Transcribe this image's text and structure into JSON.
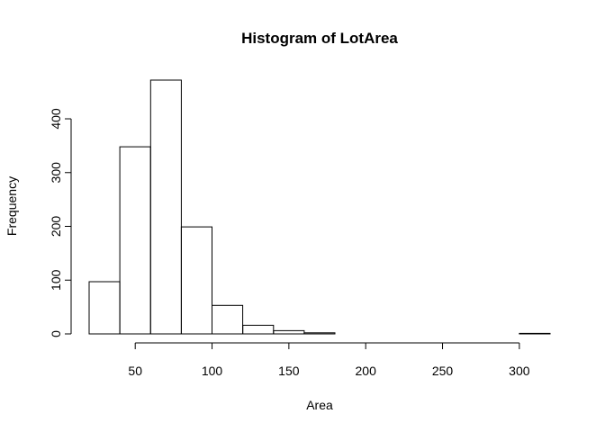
{
  "chart_data": {
    "type": "bar",
    "title": "Histogram of LotArea",
    "xlabel": "Area",
    "ylabel": "Frequency",
    "bin_edges": [
      20,
      40,
      60,
      80,
      100,
      120,
      140,
      160,
      180,
      200,
      220,
      240,
      260,
      280,
      300,
      320
    ],
    "values": [
      97,
      348,
      472,
      199,
      53,
      16,
      6,
      2,
      0,
      0,
      0,
      0,
      0,
      0,
      1
    ],
    "xlim": [
      20,
      320
    ],
    "ylim": [
      0,
      472
    ],
    "x_ticks": [
      50,
      100,
      150,
      200,
      250,
      300
    ],
    "y_ticks": [
      0,
      100,
      200,
      300,
      400
    ],
    "x_tick_labels": [
      "50",
      "100",
      "150",
      "200",
      "250",
      "300"
    ],
    "y_tick_labels": [
      "0",
      "100",
      "200",
      "300",
      "400"
    ],
    "grid": false,
    "legend": "none"
  }
}
